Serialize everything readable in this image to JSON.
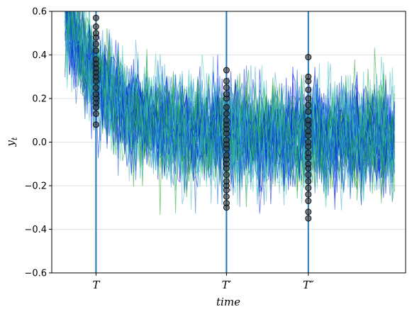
{
  "chart_data": {
    "type": "line",
    "xlabel": "time",
    "ylabel": "y_t",
    "ylim": [
      -0.6,
      0.6
    ],
    "yticks": [
      -0.6,
      -0.4,
      -0.2,
      0.0,
      0.2,
      0.4,
      0.6
    ],
    "ytick_labels": [
      "−0.6",
      "−0.4",
      "−0.2",
      "0.0",
      "0.2",
      "0.4",
      "0.6"
    ],
    "xlim": [
      0,
      160
    ],
    "grid": "horizontal",
    "n_series": 60,
    "n_steps": 150,
    "start_level": 0.62,
    "decay_rate": 0.055,
    "noise_scale": 0.11,
    "series_colors": [
      "#0018e8",
      "#18a020",
      "#3aa8d0",
      "#40c8b8",
      "#1060c8"
    ],
    "vlines": [
      {
        "label": "T",
        "x": 20,
        "color": "#1f77b4"
      },
      {
        "label": "T′",
        "x": 79,
        "color": "#1f77b4"
      },
      {
        "label": "T″",
        "x": 116,
        "color": "#1f77b4"
      }
    ],
    "markers": [
      {
        "x": 20,
        "values": [
          0.08,
          0.13,
          0.16,
          0.18,
          0.2,
          0.22,
          0.25,
          0.28,
          0.3,
          0.32,
          0.34,
          0.36,
          0.38,
          0.42,
          0.45,
          0.48,
          0.5,
          0.53,
          0.57
        ]
      },
      {
        "x": 79,
        "values": [
          -0.3,
          -0.28,
          -0.25,
          -0.22,
          -0.2,
          -0.18,
          -0.15,
          -0.12,
          -0.1,
          -0.08,
          -0.06,
          -0.03,
          -0.01,
          0.01,
          0.04,
          0.06,
          0.08,
          0.1,
          0.13,
          0.16,
          0.2,
          0.22,
          0.25,
          0.28,
          0.33
        ]
      },
      {
        "x": 116,
        "values": [
          -0.35,
          -0.32,
          -0.27,
          -0.24,
          -0.21,
          -0.18,
          -0.15,
          -0.12,
          -0.1,
          -0.07,
          -0.05,
          -0.02,
          0.0,
          0.03,
          0.05,
          0.08,
          0.1,
          0.14,
          0.17,
          0.2,
          0.24,
          0.28,
          0.3,
          0.39
        ]
      }
    ]
  }
}
